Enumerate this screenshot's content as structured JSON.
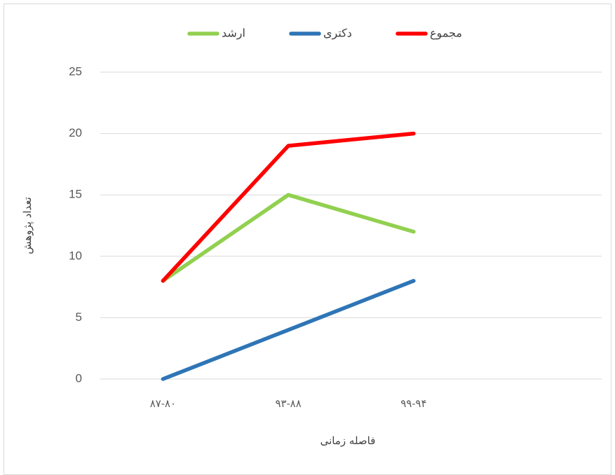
{
  "chart_data": {
    "type": "line",
    "x_label": "فاصله زمانی",
    "y_label": "تعداد پژوهش",
    "categories": [
      "۸۷-۸۰",
      "۹۳-۸۸",
      "۹۹-۹۴",
      null
    ],
    "series": [
      {
        "name": "ارشد",
        "color": "#92d050",
        "values": [
          8,
          15,
          12,
          null
        ]
      },
      {
        "name": "دکتری",
        "color": "#2e75b6",
        "values": [
          0,
          4,
          8,
          null
        ]
      },
      {
        "name": "مجموع",
        "color": "#ff0000",
        "values": [
          8,
          19,
          20,
          null
        ]
      }
    ],
    "ylim": [
      0,
      25
    ],
    "yticks": [
      0,
      5,
      10,
      15,
      20,
      25
    ],
    "grid": true,
    "legend": "top"
  }
}
